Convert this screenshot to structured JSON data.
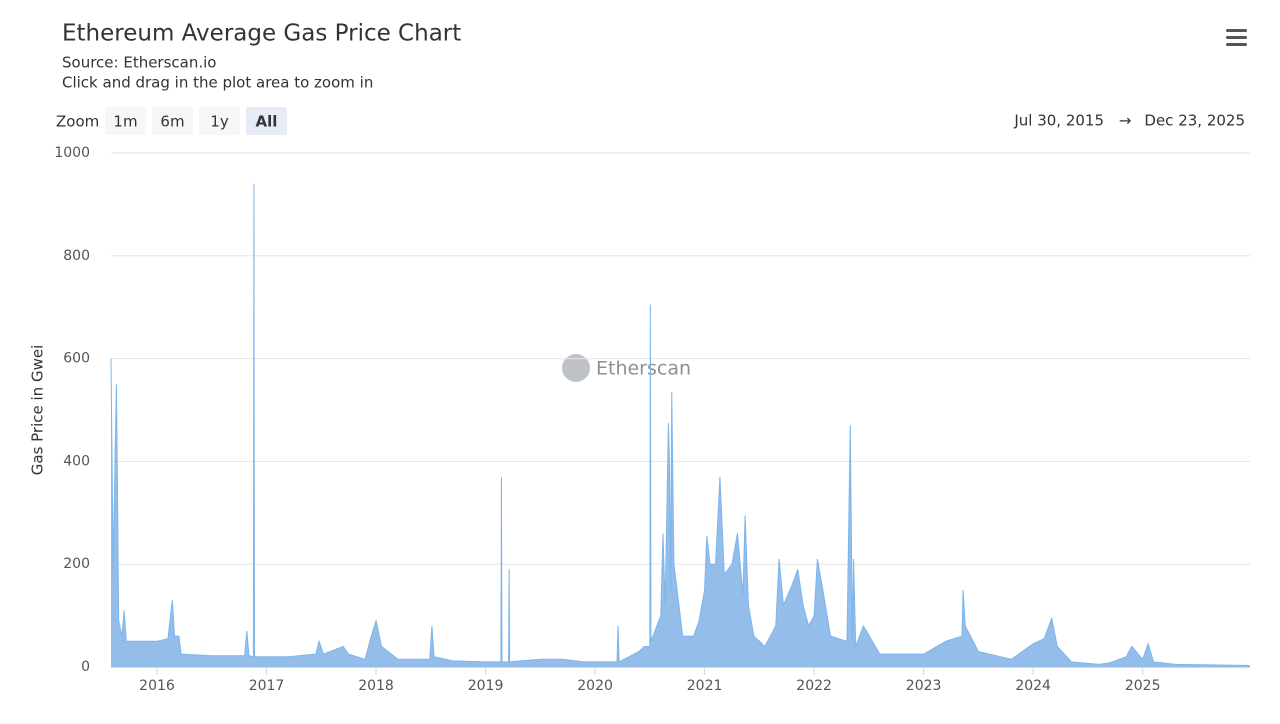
{
  "chart_data": {
    "type": "area",
    "title": "Ethereum Average Gas Price Chart",
    "subtitle_lines": [
      "Source: Etherscan.io",
      "Click and drag in the plot area to zoom in"
    ],
    "zoom_label": "Zoom",
    "zoom_buttons": [
      "1m",
      "6m",
      "1y",
      "All"
    ],
    "range_from": "Jul 30, 2015",
    "range_arrow": "→",
    "range_to": "Dec 23, 2025",
    "watermark": "Etherscan",
    "y_label": "Gas Price in Gwei",
    "xlim": [
      2015.58,
      2025.98
    ],
    "xticks": [
      2016,
      2017,
      2018,
      2019,
      2020,
      2021,
      2022,
      2023,
      2024,
      2025
    ],
    "ylim": [
      0,
      1000
    ],
    "yticks": [
      0,
      200,
      400,
      600,
      800,
      1000
    ],
    "grid": true,
    "color": "#7cb5ec",
    "fill_color": "#95bdea",
    "x": [
      2015.58,
      2015.6,
      2015.62,
      2015.63,
      2015.65,
      2015.68,
      2015.7,
      2015.72,
      2015.9,
      2016.0,
      2016.1,
      2016.14,
      2016.16,
      2016.2,
      2016.22,
      2016.5,
      2016.8,
      2016.82,
      2016.84,
      2016.88,
      2016.885,
      2016.89,
      2017.2,
      2017.45,
      2017.48,
      2017.52,
      2017.7,
      2017.75,
      2017.9,
      2017.95,
      2018.0,
      2018.05,
      2018.2,
      2018.49,
      2018.51,
      2018.53,
      2018.7,
      2019.0,
      2019.14,
      2019.145,
      2019.15,
      2019.21,
      2019.215,
      2019.22,
      2019.5,
      2019.7,
      2019.9,
      2020.2,
      2020.21,
      2020.22,
      2020.4,
      2020.45,
      2020.5,
      2020.505,
      2020.51,
      2020.6,
      2020.62,
      2020.64,
      2020.67,
      2020.68,
      2020.69,
      2020.7,
      2020.72,
      2020.8,
      2020.9,
      2020.95,
      2021.0,
      2021.02,
      2021.05,
      2021.1,
      2021.14,
      2021.18,
      2021.25,
      2021.3,
      2021.35,
      2021.37,
      2021.4,
      2021.45,
      2021.55,
      2021.65,
      2021.68,
      2021.72,
      2021.8,
      2021.85,
      2021.9,
      2021.95,
      2022.0,
      2022.03,
      2022.08,
      2022.15,
      2022.3,
      2022.33,
      2022.35,
      2022.36,
      2022.38,
      2022.45,
      2022.6,
      2022.9,
      2023.0,
      2023.2,
      2023.35,
      2023.36,
      2023.38,
      2023.5,
      2023.8,
      2023.9,
      2024.0,
      2024.1,
      2024.17,
      2024.22,
      2024.35,
      2024.6,
      2024.7,
      2024.85,
      2024.9,
      2025.0,
      2025.05,
      2025.1,
      2025.3,
      2025.98
    ],
    "values": [
      600,
      190,
      440,
      550,
      90,
      60,
      110,
      50,
      50,
      50,
      55,
      130,
      60,
      60,
      25,
      22,
      22,
      70,
      22,
      20,
      940,
      20,
      20,
      25,
      50,
      25,
      40,
      25,
      15,
      55,
      90,
      40,
      15,
      15,
      80,
      20,
      12,
      10,
      10,
      370,
      10,
      10,
      190,
      10,
      15,
      15,
      10,
      10,
      80,
      10,
      30,
      40,
      40,
      705,
      50,
      100,
      260,
      120,
      475,
      390,
      150,
      535,
      200,
      60,
      60,
      90,
      150,
      255,
      200,
      200,
      370,
      180,
      200,
      260,
      140,
      295,
      120,
      60,
      40,
      80,
      210,
      120,
      160,
      190,
      120,
      80,
      100,
      210,
      150,
      60,
      50,
      470,
      50,
      210,
      40,
      80,
      25,
      25,
      25,
      50,
      60,
      150,
      80,
      30,
      15,
      30,
      45,
      55,
      95,
      40,
      10,
      5,
      8,
      20,
      40,
      15,
      45,
      10,
      5,
      3
    ]
  }
}
